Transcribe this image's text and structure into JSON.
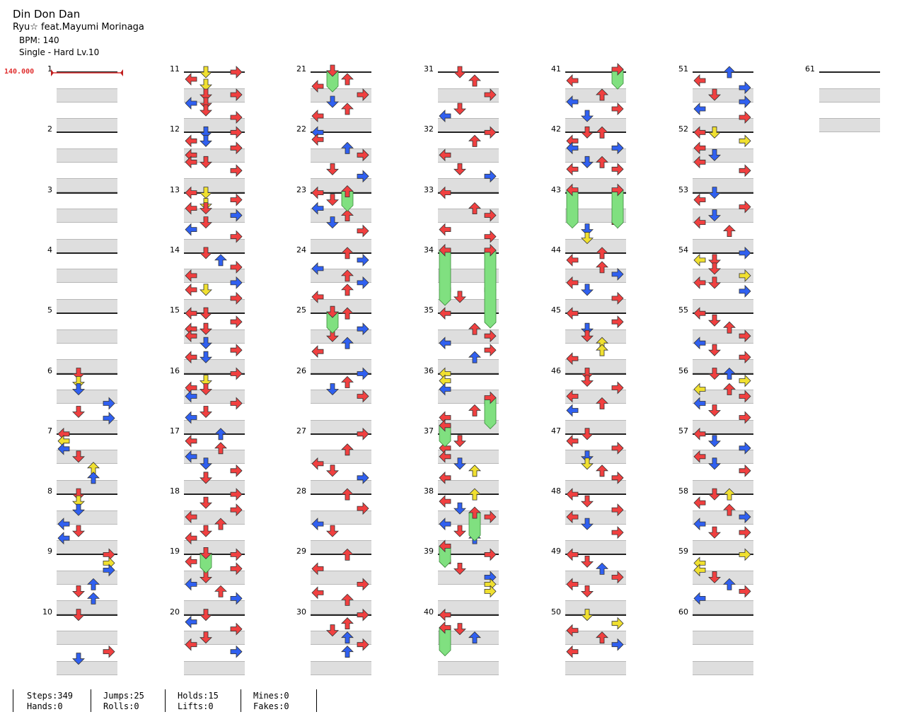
{
  "song": {
    "title": "Din Don Dan",
    "artist": "Ryu☆ feat.Mayumi Morinaga",
    "bpm_text": "BPM: 140",
    "difficulty_text": "Single - Hard  Lv.10"
  },
  "bpm_marker": "140.000",
  "measures": [
    "1",
    "2",
    "3",
    "4",
    "5",
    "6",
    "7",
    "8",
    "9",
    "10",
    "11",
    "12",
    "13",
    "14",
    "15",
    "16",
    "17",
    "18",
    "19",
    "20",
    "21",
    "22",
    "23",
    "24",
    "25",
    "26",
    "27",
    "28",
    "29",
    "30",
    "31",
    "32",
    "33",
    "34",
    "35",
    "36",
    "37",
    "38",
    "39",
    "40",
    "41",
    "42",
    "43",
    "44",
    "45",
    "46",
    "47",
    "48",
    "49",
    "50",
    "51",
    "52",
    "53",
    "54",
    "55",
    "56",
    "57",
    "58",
    "59",
    "60",
    "61"
  ],
  "colors": {
    "quarter": "#f04040",
    "eighth": "#3060f0",
    "sixteenth": "#f0e030",
    "hold": "#80e080"
  },
  "stats": {
    "steps": "Steps:349",
    "hands": "Hands:0",
    "jumps": "Jumps:25",
    "rolls": "Rolls:0",
    "holds": "Holds:15",
    "lifts": "Lifts:0",
    "mines": "Mines:0",
    "fakes": "Fakes:0"
  },
  "note_lanes": [
    "left",
    "down",
    "up",
    "right"
  ]
}
